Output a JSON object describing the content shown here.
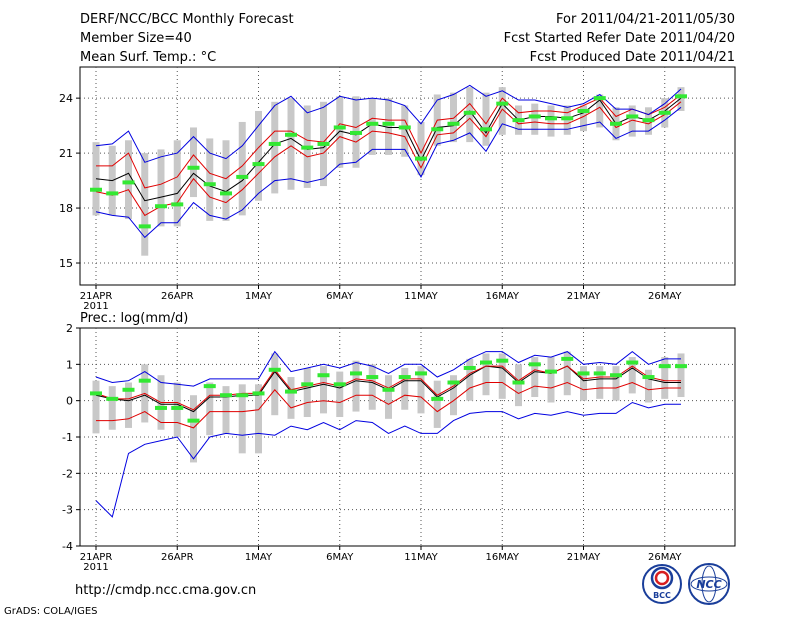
{
  "header": {
    "title": "DERF/NCC/BCC Monthly Forecast",
    "member": "Member Size=40",
    "variable": "Mean Surf. Temp.: °C",
    "period": "For 2011/04/21-2011/05/30",
    "started": "Fcst Started Refer Date 2011/04/20",
    "produced": "Fcst Produced Date 2011/04/21"
  },
  "footer": {
    "url": "http://cmdp.ncc.cma.gov.cn",
    "grads": "GrADS: COLA/IGES",
    "logo_bcc": "BCC",
    "logo_ncc": "NCC"
  },
  "colors": {
    "ensemble_mean": "#000000",
    "spread": "#e00000",
    "extremes": "#0000e0",
    "member_box": "#c8c8c8",
    "obs": "#33e833"
  },
  "chart_data": [
    {
      "type": "line",
      "title": "Mean Surf. Temp.: °C",
      "x_start": "21APR",
      "x_ticks": [
        "21APR",
        "26APR",
        "1MAY",
        "6MAY",
        "11MAY",
        "16MAY",
        "21MAY",
        "26MAY"
      ],
      "x_tick_days": [
        0,
        5,
        10,
        15,
        20,
        25,
        30,
        35
      ],
      "year_label": "2011",
      "ylim": [
        13.8,
        25.7
      ],
      "yticks": [
        15,
        18,
        21,
        24
      ],
      "series": [
        {
          "name": "ensemble mean",
          "values": [
            19.6,
            19.5,
            19.9,
            18.4,
            18.6,
            18.8,
            19.9,
            19.2,
            18.9,
            19.5,
            20.5,
            21.5,
            21.8,
            21.2,
            21.3,
            22.2,
            22.0,
            22.6,
            22.4,
            22.4,
            20.6,
            22.4,
            22.5,
            23.3,
            22.1,
            23.7,
            22.8,
            23.0,
            23.0,
            22.9,
            23.2,
            23.9,
            22.6,
            23.0,
            22.8,
            23.3,
            24.0
          ]
        },
        {
          "name": "upper spread",
          "values": [
            20.3,
            20.3,
            21.0,
            19.1,
            19.3,
            19.7,
            20.9,
            19.9,
            19.6,
            20.3,
            21.3,
            22.2,
            22.2,
            21.7,
            21.6,
            22.6,
            22.4,
            22.9,
            22.8,
            22.8,
            21.0,
            22.8,
            22.9,
            23.7,
            22.6,
            24.0,
            23.2,
            23.3,
            23.3,
            23.2,
            23.6,
            24.0,
            23.0,
            23.4,
            23.1,
            23.5,
            24.2
          ]
        },
        {
          "name": "lower spread",
          "values": [
            18.9,
            18.7,
            19.0,
            17.6,
            18.1,
            18.3,
            19.6,
            18.6,
            18.3,
            19.0,
            19.9,
            20.8,
            21.4,
            20.8,
            21.0,
            21.9,
            21.6,
            22.2,
            22.1,
            21.9,
            20.2,
            22.0,
            22.1,
            22.9,
            21.9,
            23.4,
            22.6,
            22.7,
            22.6,
            22.6,
            23.0,
            23.5,
            22.4,
            22.8,
            22.6,
            23.1,
            23.8
          ]
        },
        {
          "name": "max",
          "values": [
            21.4,
            21.5,
            22.2,
            20.5,
            20.8,
            21.0,
            21.9,
            21.0,
            20.7,
            21.4,
            22.5,
            23.6,
            24.1,
            23.2,
            23.5,
            24.1,
            23.9,
            24.0,
            23.9,
            23.6,
            22.6,
            23.9,
            24.2,
            24.7,
            24.1,
            24.4,
            23.9,
            23.9,
            23.7,
            23.5,
            23.7,
            24.2,
            23.4,
            23.4,
            23.1,
            23.7,
            24.5
          ]
        },
        {
          "name": "min",
          "values": [
            17.8,
            17.6,
            17.5,
            16.4,
            17.2,
            17.2,
            18.3,
            17.6,
            17.4,
            17.9,
            18.8,
            19.5,
            19.6,
            19.4,
            19.6,
            20.4,
            20.5,
            21.2,
            21.2,
            21.2,
            19.7,
            21.5,
            21.7,
            22.1,
            21.1,
            22.6,
            22.3,
            22.3,
            22.3,
            22.3,
            22.5,
            22.7,
            21.8,
            22.2,
            22.2,
            22.8,
            23.5
          ]
        }
      ],
      "member_ranges": [
        [
          17.6,
          21.6
        ],
        [
          17.6,
          21.4
        ],
        [
          17.4,
          21.7
        ],
        [
          15.4,
          21.0
        ],
        [
          17.0,
          21.2
        ],
        [
          17.0,
          21.7
        ],
        [
          18.6,
          22.4
        ],
        [
          17.3,
          21.8
        ],
        [
          17.3,
          21.7
        ],
        [
          17.6,
          22.7
        ],
        [
          18.4,
          23.3
        ],
        [
          18.8,
          23.8
        ],
        [
          19.0,
          24.0
        ],
        [
          19.1,
          23.6
        ],
        [
          19.2,
          23.8
        ],
        [
          20.2,
          24.1
        ],
        [
          20.2,
          24.1
        ],
        [
          20.9,
          24.0
        ],
        [
          20.9,
          24.0
        ],
        [
          20.8,
          23.6
        ],
        [
          19.8,
          22.7
        ],
        [
          21.4,
          24.2
        ],
        [
          21.6,
          24.3
        ],
        [
          21.6,
          24.6
        ],
        [
          21.4,
          24.3
        ],
        [
          22.0,
          24.6
        ],
        [
          22.0,
          23.6
        ],
        [
          22.0,
          23.7
        ],
        [
          21.9,
          23.6
        ],
        [
          22.0,
          23.6
        ],
        [
          22.2,
          23.6
        ],
        [
          22.4,
          24.2
        ],
        [
          21.7,
          23.5
        ],
        [
          21.9,
          23.6
        ],
        [
          22.0,
          23.5
        ],
        [
          22.4,
          24.0
        ],
        [
          23.3,
          24.6
        ]
      ],
      "observed": [
        19.0,
        18.8,
        19.4,
        17.0,
        18.1,
        18.2,
        20.2,
        19.3,
        18.8,
        19.7,
        20.4,
        21.5,
        22.0,
        21.3,
        21.5,
        22.4,
        22.1,
        22.6,
        22.6,
        22.4,
        20.7,
        22.3,
        22.6,
        23.2,
        22.3,
        23.7,
        22.8,
        23.0,
        22.9,
        22.9,
        23.3,
        24.0,
        22.6,
        23.0,
        22.8,
        23.2,
        24.1
      ]
    },
    {
      "type": "line",
      "title": "Prec.: log(mm/d)",
      "x_start": "21APR",
      "x_ticks": [
        "21APR",
        "26APR",
        "1MAY",
        "6MAY",
        "11MAY",
        "16MAY",
        "21MAY",
        "26MAY"
      ],
      "x_tick_days": [
        0,
        5,
        10,
        15,
        20,
        25,
        30,
        35
      ],
      "year_label": "2011",
      "ylim": [
        -4,
        2
      ],
      "yticks": [
        -4,
        -3,
        -2,
        -1,
        0,
        1,
        2
      ],
      "series": [
        {
          "name": "ensemble mean",
          "values": [
            0.15,
            0.05,
            0.0,
            0.15,
            -0.1,
            -0.1,
            -0.3,
            0.1,
            0.1,
            0.15,
            0.15,
            0.8,
            0.25,
            0.35,
            0.45,
            0.35,
            0.55,
            0.5,
            0.3,
            0.55,
            0.55,
            0.1,
            0.35,
            0.7,
            0.95,
            0.9,
            0.5,
            0.8,
            0.75,
            0.95,
            0.55,
            0.6,
            0.6,
            0.9,
            0.6,
            0.5,
            0.5
          ]
        },
        {
          "name": "upper spread",
          "values": [
            0.2,
            0.05,
            0.05,
            0.2,
            -0.05,
            -0.05,
            -0.25,
            0.15,
            0.15,
            0.2,
            0.2,
            0.85,
            0.3,
            0.4,
            0.5,
            0.4,
            0.6,
            0.55,
            0.35,
            0.6,
            0.6,
            0.15,
            0.4,
            0.75,
            0.95,
            0.95,
            0.55,
            0.85,
            0.75,
            0.95,
            0.6,
            0.65,
            0.65,
            0.95,
            0.65,
            0.55,
            0.55
          ]
        },
        {
          "name": "lower spread",
          "values": [
            -0.55,
            -0.55,
            -0.5,
            -0.3,
            -0.6,
            -0.6,
            -0.75,
            -0.3,
            -0.3,
            -0.3,
            -0.25,
            0.3,
            -0.2,
            -0.05,
            0.0,
            -0.05,
            0.15,
            0.15,
            -0.1,
            0.15,
            0.1,
            -0.3,
            0.0,
            0.35,
            0.5,
            0.5,
            0.2,
            0.4,
            0.35,
            0.5,
            0.3,
            0.35,
            0.35,
            0.5,
            0.3,
            0.35,
            0.35
          ]
        },
        {
          "name": "max",
          "values": [
            0.65,
            0.5,
            0.55,
            0.8,
            0.5,
            0.45,
            0.4,
            0.6,
            0.6,
            0.6,
            0.6,
            1.35,
            0.8,
            0.9,
            1.0,
            0.9,
            1.05,
            0.95,
            0.75,
            1.0,
            1.0,
            0.65,
            0.85,
            1.15,
            1.35,
            1.35,
            1.05,
            1.25,
            1.2,
            1.35,
            1.0,
            1.05,
            1.0,
            1.35,
            1.0,
            1.15,
            1.15
          ]
        },
        {
          "name": "min",
          "values": [
            -2.75,
            -3.2,
            -1.45,
            -1.2,
            -1.1,
            -1.0,
            -1.6,
            -1.0,
            -0.9,
            -0.95,
            -0.9,
            -0.95,
            -0.7,
            -0.8,
            -0.6,
            -0.8,
            -0.55,
            -0.6,
            -0.9,
            -0.7,
            -0.9,
            -0.9,
            -0.55,
            -0.35,
            -0.3,
            -0.3,
            -0.5,
            -0.35,
            -0.4,
            -0.3,
            -0.4,
            -0.35,
            -0.35,
            -0.05,
            -0.2,
            -0.1,
            -0.1
          ]
        }
      ],
      "member_ranges": [
        [
          -0.9,
          0.55
        ],
        [
          -0.8,
          0.4
        ],
        [
          -0.75,
          0.5
        ],
        [
          -0.6,
          1.0
        ],
        [
          -0.8,
          0.7
        ],
        [
          -1.0,
          0.5
        ],
        [
          -1.7,
          0.15
        ],
        [
          -0.95,
          0.5
        ],
        [
          -0.9,
          0.4
        ],
        [
          -1.45,
          0.45
        ],
        [
          -1.45,
          0.45
        ],
        [
          -0.4,
          1.3
        ],
        [
          -0.5,
          0.65
        ],
        [
          -0.45,
          0.9
        ],
        [
          -0.35,
          0.95
        ],
        [
          -0.45,
          0.8
        ],
        [
          -0.3,
          1.1
        ],
        [
          -0.25,
          1.0
        ],
        [
          -0.5,
          0.7
        ],
        [
          -0.25,
          0.9
        ],
        [
          -0.35,
          0.95
        ],
        [
          -0.75,
          0.55
        ],
        [
          -0.4,
          0.7
        ],
        [
          0.0,
          1.15
        ],
        [
          0.15,
          1.3
        ],
        [
          0.05,
          1.3
        ],
        [
          -0.15,
          1.0
        ],
        [
          0.1,
          1.2
        ],
        [
          -0.05,
          1.2
        ],
        [
          0.15,
          1.35
        ],
        [
          0.0,
          0.95
        ],
        [
          0.05,
          0.95
        ],
        [
          0.0,
          0.95
        ],
        [
          0.2,
          1.2
        ],
        [
          -0.05,
          0.85
        ],
        [
          0.05,
          1.2
        ],
        [
          0.1,
          1.3
        ]
      ],
      "observed": [
        0.2,
        0.05,
        0.3,
        0.55,
        -0.2,
        -0.2,
        -0.55,
        0.4,
        0.15,
        0.15,
        0.2,
        0.85,
        0.25,
        0.45,
        0.7,
        0.45,
        0.75,
        0.65,
        0.3,
        0.65,
        0.75,
        0.05,
        0.5,
        0.9,
        1.05,
        1.1,
        0.5,
        1.0,
        0.8,
        1.15,
        0.75,
        0.75,
        0.7,
        1.05,
        0.65,
        0.95,
        0.95
      ]
    }
  ]
}
